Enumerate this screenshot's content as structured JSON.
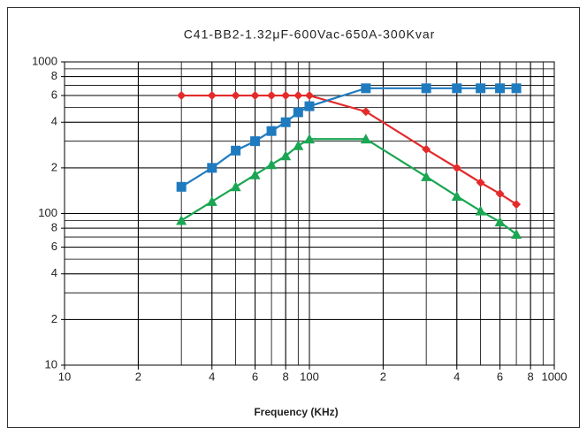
{
  "chart_data": {
    "type": "line",
    "title": "C41-BB2-1.32μF-600Vac-650A-300Kvar",
    "x_label": "Frequency (KHz)",
    "x_scale": "log",
    "y_scale": "log",
    "grid": true,
    "minor_grid": true,
    "xlim": [
      10,
      1000
    ],
    "ylim": [
      10,
      1000
    ],
    "xticks": [
      10,
      {
        "value": 20,
        "label": "2"
      },
      {
        "value": 40,
        "label": "4"
      },
      {
        "value": 60,
        "label": "6"
      },
      {
        "value": 80,
        "label": "8"
      },
      100,
      {
        "value": 200,
        "label": "2"
      },
      {
        "value": 400,
        "label": "4"
      },
      {
        "value": 600,
        "label": "6"
      },
      {
        "value": 800,
        "label": "8"
      },
      1000
    ],
    "yticks": [
      10,
      {
        "value": 20,
        "label": "2"
      },
      {
        "value": 40,
        "label": "4"
      },
      {
        "value": 60,
        "label": "6"
      },
      {
        "value": 80,
        "label": "8"
      },
      100,
      {
        "value": 200,
        "label": "2"
      },
      {
        "value": 400,
        "label": "4"
      },
      {
        "value": 600,
        "label": "6"
      },
      {
        "value": 800,
        "label": "8"
      },
      1000
    ],
    "x": [
      30,
      40,
      50,
      60,
      70,
      80,
      90,
      100,
      170,
      300,
      400,
      500,
      600,
      700
    ],
    "series": [
      {
        "color": "#e32b2b",
        "marker": "diamond",
        "values": [
          600,
          600,
          600,
          600,
          600,
          600,
          600,
          600,
          470,
          265,
          200,
          160,
          135,
          115
        ]
      },
      {
        "color": "#1f7bc0",
        "marker": "square",
        "values": [
          150,
          200,
          260,
          300,
          350,
          400,
          465,
          510,
          670,
          670,
          670,
          670,
          670,
          670
        ]
      },
      {
        "color": "#1aa652",
        "marker": "triangle",
        "values": [
          90,
          120,
          150,
          180,
          210,
          240,
          280,
          310,
          310,
          175,
          130,
          104,
          88,
          73
        ]
      }
    ]
  }
}
